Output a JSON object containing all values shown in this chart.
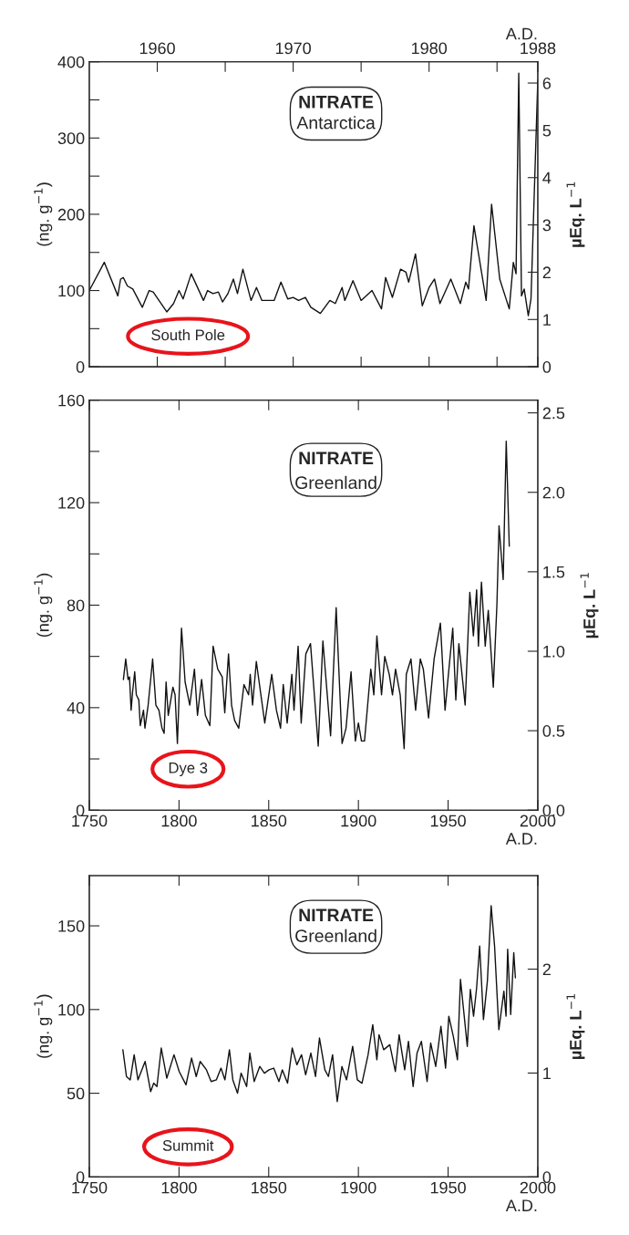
{
  "chart_data": [
    {
      "type": "line",
      "xlabel": "A.D.",
      "ylabel": "(ng. g$^{−1}$)",
      "y2label": "µEq. L$^{−1}$",
      "xlim": [
        1955,
        1988
      ],
      "xticks": [
        1960,
        {
          "value": 1965,
          "label": null
        },
        1970,
        {
          "value": 1975,
          "label": null
        },
        1980,
        {
          "value": 1985,
          "label": null
        },
        1988
      ],
      "ylim": [
        0,
        400
      ],
      "yticks": [
        0,
        {
          "value": 50,
          "label": null
        },
        100,
        {
          "value": 150,
          "label": null
        },
        200,
        {
          "value": 250,
          "label": null
        },
        300,
        {
          "value": 350,
          "label": null
        },
        400
      ],
      "y2lim": [
        0,
        6.45
      ],
      "y2ticks": [
        0,
        1,
        2,
        3,
        4,
        5,
        6
      ],
      "annotations": [
        "NITRATE",
        "Antarctica",
        "South Pole"
      ],
      "series": [
        {
          "color": "#111111",
          "x": [
            1955.0,
            1956.1,
            1957.1,
            1957.3,
            1957.5,
            1957.8,
            1958.2,
            1958.9,
            1959.4,
            1959.7,
            1960.7,
            1961.2,
            1961.6,
            1961.9,
            1962.5,
            1963.4,
            1963.7,
            1964.1,
            1964.5,
            1964.8,
            1965.2,
            1965.6,
            1965.9,
            1966.3,
            1966.9,
            1967.3,
            1967.7,
            1968.6,
            1969.1,
            1969.6,
            1970.0,
            1970.4,
            1970.9,
            1971.3,
            1972.0,
            1972.7,
            1973.1,
            1973.6,
            1973.8,
            1974.4,
            1975.0,
            1975.8,
            1976.5,
            1976.8,
            1977.3,
            1977.9,
            1978.3,
            1978.5,
            1979.0,
            1979.5,
            1980.0,
            1980.4,
            1980.8,
            1981.6,
            1982.3,
            1982.7,
            1982.9,
            1983.3,
            1984.2,
            1984.6,
            1985.2,
            1985.9,
            1986.2,
            1986.4,
            1986.6,
            1986.8,
            1987.0,
            1987.3,
            1987.5,
            1988.0
          ],
          "values": [
            100,
            137,
            93,
            115,
            117,
            106,
            102,
            78,
            100,
            98,
            72,
            83,
            100,
            89,
            122,
            87,
            100,
            96,
            98,
            85,
            96,
            115,
            96,
            128,
            87,
            104,
            87,
            87,
            111,
            89,
            91,
            87,
            91,
            78,
            70,
            87,
            83,
            104,
            87,
            113,
            87,
            100,
            76,
            117,
            91,
            128,
            124,
            111,
            148,
            80,
            104,
            115,
            83,
            115,
            83,
            111,
            102,
            185,
            87,
            213,
            115,
            76,
            137,
            122,
            385,
            93,
            102,
            67,
            89,
            376
          ]
        }
      ]
    },
    {
      "type": "line",
      "xlabel": "A.D.",
      "ylabel": "(ng. g$^{−1}$)",
      "y2label": "µEq. L$^{−1}$",
      "xlim": [
        1750,
        2000
      ],
      "xticks": [
        1750,
        1800,
        1850,
        1900,
        1950,
        2000
      ],
      "ylim": [
        0,
        160
      ],
      "yticks": [
        0,
        {
          "value": 20,
          "label": null
        },
        40,
        {
          "value": 60,
          "label": null
        },
        80,
        {
          "value": 100,
          "label": null
        },
        120,
        {
          "value": 140,
          "label": null
        },
        160
      ],
      "y2lim": [
        0,
        2.58
      ],
      "y2ticks": [
        {
          "value": 0,
          "label": "0.0"
        },
        0.5,
        {
          "value": 1,
          "label": "1.0"
        },
        1.5,
        {
          "value": 2,
          "label": "2.0"
        },
        2.5
      ],
      "annotations": [
        "NITRATE",
        "Greenland",
        "Dye 3"
      ],
      "series": [
        {
          "color": "#111111",
          "x": [
            1769.0,
            1770.3,
            1771.6,
            1772.4,
            1773.3,
            1774.1,
            1775.3,
            1776.2,
            1777.6,
            1778.4,
            1780.2,
            1781.0,
            1782.8,
            1785.3,
            1787.1,
            1788.8,
            1790.5,
            1791.7,
            1792.8,
            1794.0,
            1796.6,
            1797.8,
            1799.1,
            1801.4,
            1803.4,
            1806.0,
            1808.6,
            1810.3,
            1812.6,
            1814.7,
            1817.2,
            1819.0,
            1821.6,
            1824.1,
            1825.5,
            1827.6,
            1829.3,
            1831.0,
            1833.3,
            1836.2,
            1838.8,
            1839.7,
            1841.0,
            1843.1,
            1847.8,
            1851.7,
            1854.3,
            1856.6,
            1858.1,
            1860.3,
            1862.9,
            1864.1,
            1866.4,
            1868.1,
            1870.7,
            1873.3,
            1877.6,
            1880.2,
            1884.5,
            1887.6,
            1890.9,
            1893.1,
            1895.9,
            1898.3,
            1900.0,
            1901.7,
            1903.4,
            1906.9,
            1908.6,
            1910.3,
            1912.9,
            1914.7,
            1917.2,
            1919.0,
            1920.7,
            1923.3,
            1925.5,
            1926.7,
            1929.3,
            1931.9,
            1934.5,
            1936.2,
            1939.1,
            1942.2,
            1945.7,
            1948.3,
            1952.6,
            1954.3,
            1956.0,
            1959.5,
            1962.1,
            1964.1,
            1965.9,
            1966.9,
            1968.6,
            1970.7,
            1972.4,
            1975.2,
            1977.2,
            1978.4,
            1980.7,
            1982.4,
            1984.1
          ],
          "values": [
            51,
            59,
            51,
            52,
            39,
            46,
            54,
            45,
            43,
            33,
            39,
            32,
            41,
            59,
            41,
            39,
            32,
            30,
            50,
            37,
            48,
            45,
            26,
            71,
            50,
            41,
            55,
            37,
            51,
            37,
            33,
            64,
            55,
            52,
            38,
            61,
            41,
            35,
            32,
            49,
            45,
            53,
            41,
            58,
            34,
            53,
            39,
            32,
            49,
            34,
            53,
            39,
            64,
            34,
            61,
            65,
            25,
            66,
            29,
            79,
            26,
            32,
            54,
            27,
            34,
            27,
            27,
            55,
            45,
            68,
            45,
            60,
            53,
            45,
            55,
            45,
            24,
            53,
            59,
            39,
            59,
            55,
            36,
            59,
            73,
            39,
            71,
            43,
            65,
            41,
            85,
            68,
            86,
            64,
            89,
            64,
            78,
            48,
            80,
            111,
            90,
            144,
            103
          ]
        }
      ]
    },
    {
      "type": "line",
      "xlabel": "A.D.",
      "ylabel": "(ng. g$^{−1}$)",
      "y2label": "µEq. L$^{−1}$",
      "xlim": [
        1750,
        2000
      ],
      "xticks": [
        1750,
        1800,
        1850,
        1900,
        1950,
        2000
      ],
      "ylim": [
        0,
        180
      ],
      "yticks": [
        0,
        50,
        100,
        150
      ],
      "y2lim": [
        0,
        2.9
      ],
      "y2ticks": [
        0,
        1,
        2
      ],
      "annotations": [
        "NITRATE",
        "Greenland",
        "Summit"
      ],
      "series": [
        {
          "color": "#111111",
          "x": [
            1768.7,
            1770.7,
            1772.8,
            1775.0,
            1777.1,
            1781.1,
            1784.2,
            1785.9,
            1787.7,
            1790.1,
            1793.2,
            1797.2,
            1800.1,
            1803.9,
            1807.0,
            1809.6,
            1811.8,
            1815.3,
            1817.9,
            1820.8,
            1823.4,
            1825.6,
            1828.1,
            1830.0,
            1832.6,
            1834.6,
            1837.7,
            1839.5,
            1841.9,
            1845.0,
            1847.6,
            1850.2,
            1852.8,
            1855.7,
            1857.6,
            1860.5,
            1863.1,
            1865.7,
            1868.3,
            1870.6,
            1873.5,
            1876.1,
            1878.3,
            1881.3,
            1883.3,
            1885.6,
            1888.2,
            1890.8,
            1893.4,
            1896.8,
            1899.4,
            1902.0,
            1905.4,
            1908.0,
            1910.3,
            1911.5,
            1914.1,
            1917.5,
            1920.6,
            1922.7,
            1925.8,
            1927.9,
            1930.5,
            1932.7,
            1935.1,
            1938.3,
            1940.3,
            1943.1,
            1946.0,
            1948.6,
            1950.4,
            1952.9,
            1955.2,
            1956.9,
            1960.7,
            1962.4,
            1964.2,
            1965.9,
            1967.6,
            1969.7,
            1971.9,
            1974.0,
            1975.9,
            1978.3,
            1981.1,
            1982.3,
            1983.2,
            1984.9,
            1986.6,
            1987.5
          ],
          "values": [
            76,
            60,
            58,
            73,
            58,
            69,
            51,
            56,
            54,
            77,
            59,
            73,
            63,
            55,
            71,
            60,
            69,
            64,
            57,
            58,
            65,
            58,
            76,
            58,
            50,
            62,
            54,
            74,
            57,
            66,
            62,
            64,
            65,
            57,
            64,
            56,
            77,
            67,
            73,
            61,
            74,
            60,
            83,
            64,
            60,
            73,
            45,
            66,
            58,
            78,
            58,
            56,
            73,
            91,
            70,
            85,
            76,
            79,
            63,
            85,
            64,
            81,
            54,
            74,
            81,
            57,
            80,
            66,
            90,
            65,
            96,
            84,
            70,
            118,
            78,
            112,
            96,
            113,
            138,
            94,
            117,
            162,
            138,
            88,
            111,
            96,
            136,
            97,
            134,
            119
          ]
        }
      ]
    }
  ]
}
